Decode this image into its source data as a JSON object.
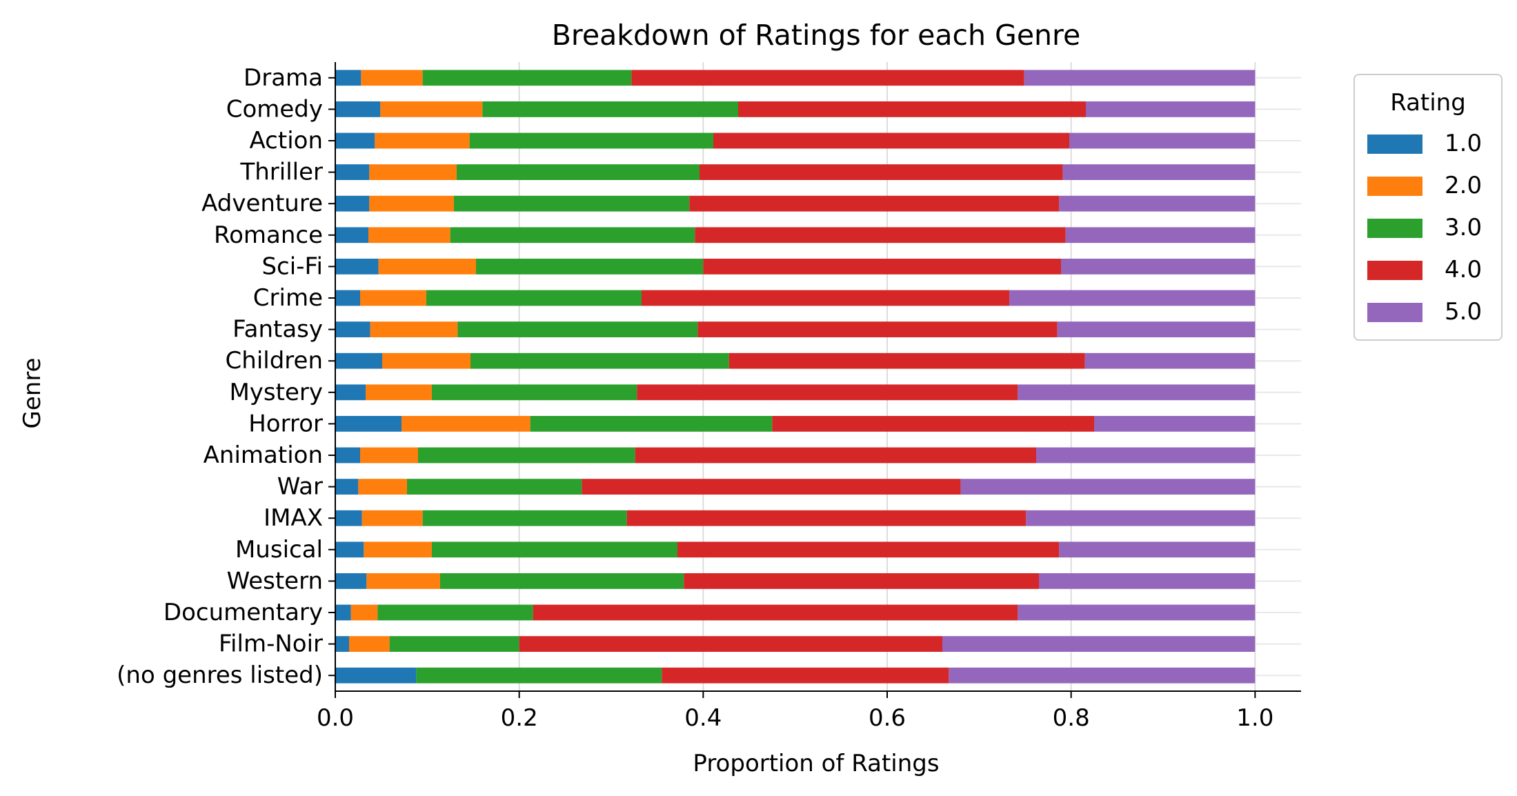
{
  "chart_data": {
    "type": "bar",
    "orientation": "horizontal",
    "stacked": true,
    "title": "Breakdown of Ratings for each Genre",
    "xlabel": "Proportion of Ratings",
    "ylabel": "Genre",
    "xlim": [
      0,
      1.05
    ],
    "xticks": [
      "0.0",
      "0.2",
      "0.4",
      "0.6",
      "0.8",
      "1.0"
    ],
    "grid": "vertical",
    "legend": {
      "title": "Rating",
      "placement": "outside-top-right"
    },
    "categories": [
      "Drama",
      "Comedy",
      "Action",
      "Thriller",
      "Adventure",
      "Romance",
      "Sci-Fi",
      "Crime",
      "Fantasy",
      "Children",
      "Mystery",
      "Horror",
      "Animation",
      "War",
      "IMAX",
      "Musical",
      "Western",
      "Documentary",
      "Film-Noir",
      "(no genres listed)"
    ],
    "series": [
      {
        "name": "1.0",
        "color": "#1f77b4",
        "values": [
          0.028,
          0.049,
          0.043,
          0.037,
          0.037,
          0.036,
          0.047,
          0.027,
          0.038,
          0.051,
          0.033,
          0.072,
          0.027,
          0.025,
          0.029,
          0.031,
          0.034,
          0.017,
          0.015,
          0.088
        ]
      },
      {
        "name": "2.0",
        "color": "#ff7f0e",
        "values": [
          0.067,
          0.111,
          0.103,
          0.095,
          0.092,
          0.089,
          0.106,
          0.072,
          0.095,
          0.096,
          0.072,
          0.14,
          0.063,
          0.053,
          0.066,
          0.074,
          0.08,
          0.029,
          0.044,
          0.0
        ]
      },
      {
        "name": "3.0",
        "color": "#2ca02c",
        "values": [
          0.227,
          0.278,
          0.265,
          0.264,
          0.256,
          0.266,
          0.247,
          0.234,
          0.261,
          0.281,
          0.223,
          0.263,
          0.236,
          0.19,
          0.222,
          0.267,
          0.265,
          0.169,
          0.141,
          0.267
        ]
      },
      {
        "name": "4.0",
        "color": "#d62728",
        "values": [
          0.427,
          0.378,
          0.387,
          0.395,
          0.402,
          0.403,
          0.389,
          0.4,
          0.391,
          0.387,
          0.414,
          0.35,
          0.436,
          0.412,
          0.434,
          0.415,
          0.386,
          0.527,
          0.46,
          0.312
        ]
      },
      {
        "name": "5.0",
        "color": "#9467bd",
        "values": [
          0.251,
          0.184,
          0.202,
          0.209,
          0.213,
          0.206,
          0.211,
          0.267,
          0.215,
          0.185,
          0.258,
          0.175,
          0.238,
          0.32,
          0.249,
          0.213,
          0.235,
          0.258,
          0.34,
          0.333
        ]
      }
    ]
  }
}
